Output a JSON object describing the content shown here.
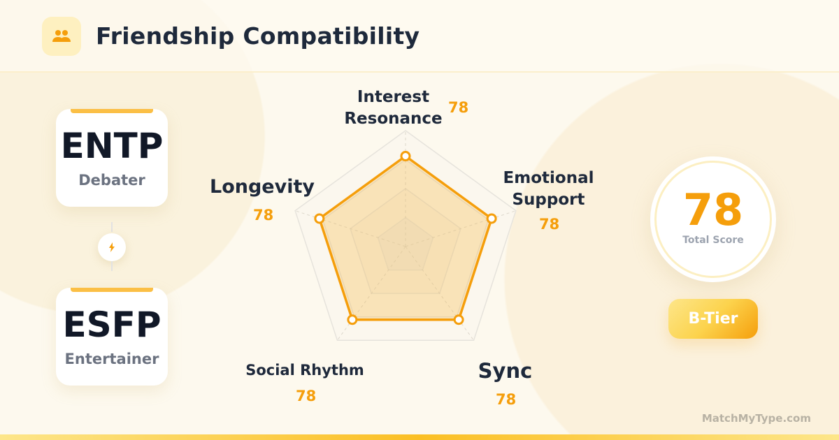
{
  "header": {
    "title": "Friendship Compatibility",
    "icon": "people-icon"
  },
  "types": [
    {
      "code": "ENTP",
      "nickname": "Debater"
    },
    {
      "code": "ESFP",
      "nickname": "Entertainer"
    }
  ],
  "connector_icon": "lightning-icon",
  "score": {
    "value": "78",
    "label": "Total Score",
    "tier": "B-Tier"
  },
  "brand": "MatchMyType.com",
  "colors": {
    "accent": "#f59e0b",
    "text": "#1e293b"
  },
  "chart_data": {
    "type": "radar",
    "categories": [
      "Interest Resonance",
      "Emotional Support",
      "Sync",
      "Social Rhythm",
      "Longevity"
    ],
    "values": [
      78,
      78,
      78,
      78,
      78
    ],
    "value_labels": [
      "78",
      "78",
      "78",
      "78",
      "78"
    ],
    "range": [
      0,
      100
    ],
    "grid": true
  }
}
